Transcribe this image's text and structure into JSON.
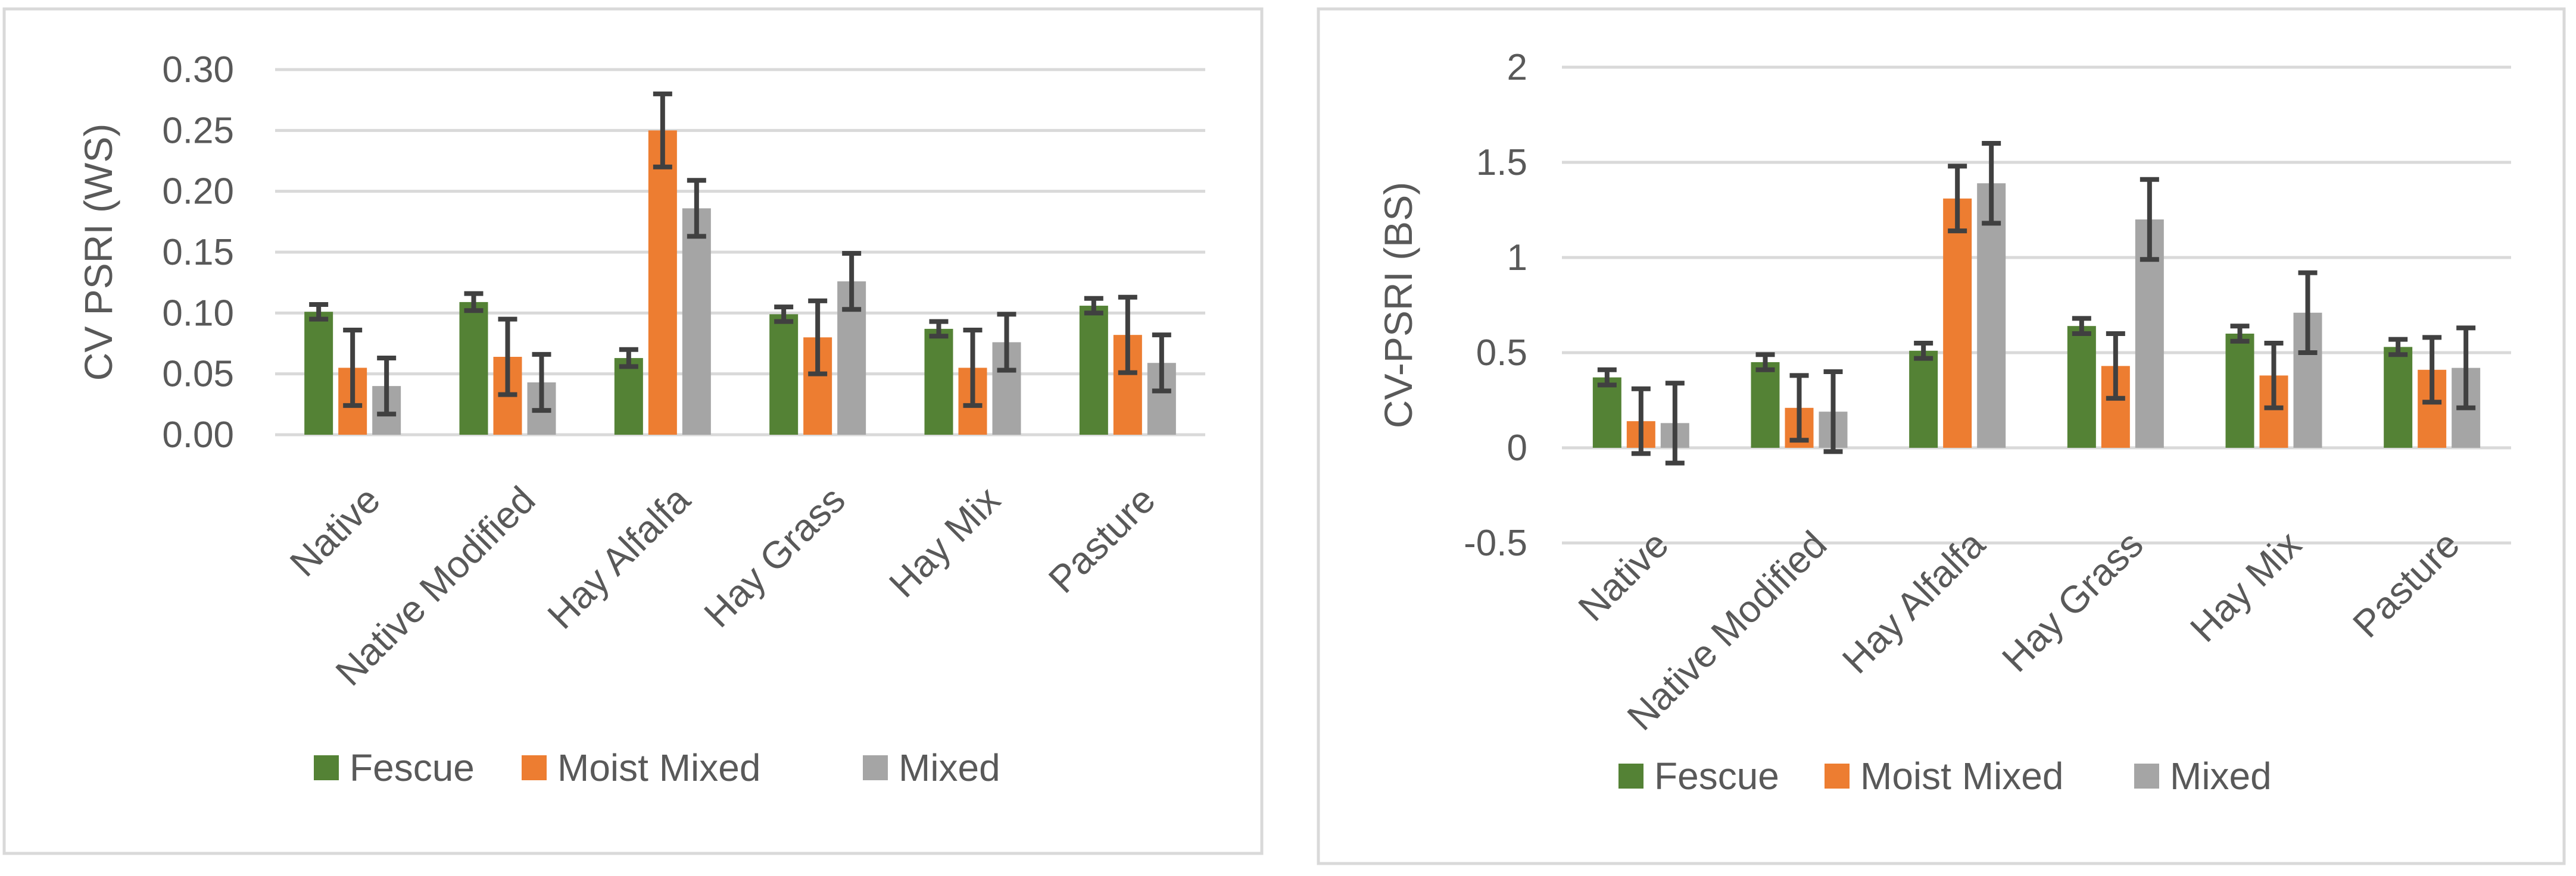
{
  "chart_data": [
    {
      "type": "bar",
      "title": "",
      "xlabel": "",
      "ylabel": "CV PSRI (WS)",
      "ylim": [
        0,
        0.3
      ],
      "ytick_step": 0.05,
      "ytick_decimals": 2,
      "categories": [
        "Native",
        "Native Modified",
        "Hay Alfalfa",
        "Hay Grass",
        "Hay Mix",
        "Pasture"
      ],
      "series": [
        {
          "name": "Fescue",
          "color": "#548235",
          "values": [
            0.101,
            0.109,
            0.063,
            0.099,
            0.087,
            0.106
          ],
          "errors": [
            0.006,
            0.007,
            0.007,
            0.006,
            0.006,
            0.006
          ]
        },
        {
          "name": "Moist Mixed",
          "color": "#ed7d31",
          "values": [
            0.055,
            0.064,
            0.25,
            0.08,
            0.055,
            0.082
          ],
          "errors": [
            0.031,
            0.031,
            0.03,
            0.03,
            0.031,
            0.031
          ]
        },
        {
          "name": "Mixed",
          "color": "#a5a5a5",
          "values": [
            0.04,
            0.043,
            0.186,
            0.126,
            0.076,
            0.059
          ],
          "errors": [
            0.023,
            0.023,
            0.023,
            0.023,
            0.023,
            0.023
          ]
        }
      ],
      "legend": "bottom",
      "grid": true
    },
    {
      "type": "bar",
      "title": "",
      "xlabel": "",
      "ylabel": "CV-PSRI (BS)",
      "ylim": [
        -0.5,
        2
      ],
      "ytick_step": 0.5,
      "ytick_decimals": -1,
      "categories": [
        "Native",
        "Native Modified",
        "Hay Alfalfa",
        "Hay Grass",
        "Hay Mix",
        "Pasture"
      ],
      "series": [
        {
          "name": "Fescue",
          "color": "#548235",
          "values": [
            0.37,
            0.45,
            0.51,
            0.64,
            0.6,
            0.53
          ],
          "errors": [
            0.04,
            0.04,
            0.04,
            0.04,
            0.04,
            0.04
          ]
        },
        {
          "name": "Moist Mixed",
          "color": "#ed7d31",
          "values": [
            0.14,
            0.21,
            1.31,
            0.43,
            0.38,
            0.41
          ],
          "errors": [
            0.17,
            0.17,
            0.17,
            0.17,
            0.17,
            0.17
          ]
        },
        {
          "name": "Mixed",
          "color": "#a5a5a5",
          "values": [
            0.13,
            0.19,
            1.39,
            1.2,
            0.71,
            0.42
          ],
          "errors": [
            0.21,
            0.21,
            0.21,
            0.21,
            0.21,
            0.21
          ]
        }
      ],
      "legend": "bottom",
      "grid": true
    }
  ]
}
